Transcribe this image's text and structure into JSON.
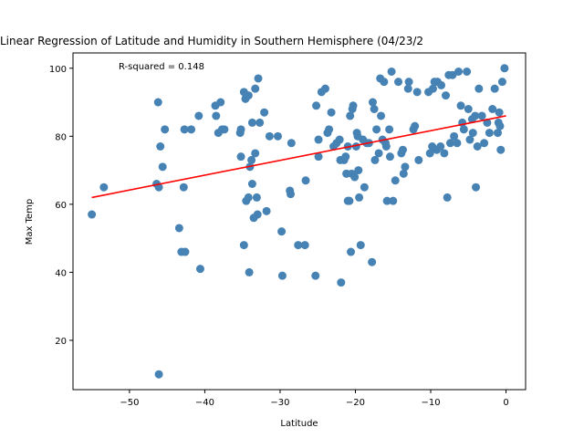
{
  "chart_data": {
    "type": "scatter",
    "title": "Linear Regression of Latitude and Humidity in Southern Hemisphere (04/23/2",
    "xlabel": "Latitude",
    "ylabel": "Max Temp",
    "xlim": [
      -57.5,
      2.6
    ],
    "ylim": [
      5.5,
      104.5
    ],
    "xticks": [
      -50,
      -40,
      -30,
      -20,
      -10,
      0
    ],
    "xtick_labels": [
      "−50",
      "−40",
      "−30",
      "−20",
      "−10",
      "0"
    ],
    "yticks": [
      20,
      40,
      60,
      80,
      100
    ],
    "ytick_labels": [
      "20",
      "40",
      "60",
      "80",
      "100"
    ],
    "grid": false,
    "annotation": "R-squared = 0.148",
    "colors": {
      "points": "#4682b4",
      "line": "#ff0000"
    },
    "regression": {
      "x": [
        -55,
        0
      ],
      "y": [
        62,
        86
      ]
    },
    "points": [
      [
        -55.0,
        57
      ],
      [
        -53.4,
        65
      ],
      [
        -46.4,
        66
      ],
      [
        -46.1,
        65
      ],
      [
        -46.2,
        90
      ],
      [
        -45.9,
        77
      ],
      [
        -45.6,
        71
      ],
      [
        -45.3,
        82
      ],
      [
        -46.1,
        10
      ],
      [
        -43.4,
        53
      ],
      [
        -43.1,
        46
      ],
      [
        -42.6,
        46
      ],
      [
        -42.8,
        65
      ],
      [
        -42.7,
        82
      ],
      [
        -41.8,
        82
      ],
      [
        -40.8,
        86
      ],
      [
        -40.6,
        41
      ],
      [
        -38.6,
        89
      ],
      [
        -38.5,
        86
      ],
      [
        -38.2,
        81
      ],
      [
        -37.9,
        90
      ],
      [
        -37.7,
        82
      ],
      [
        -37.4,
        82
      ],
      [
        -35.2,
        74
      ],
      [
        -35.3,
        81
      ],
      [
        -35.2,
        82
      ],
      [
        -34.8,
        93
      ],
      [
        -34.6,
        91
      ],
      [
        -34.2,
        92
      ],
      [
        -34.5,
        61
      ],
      [
        -34.8,
        48
      ],
      [
        -34.2,
        62
      ],
      [
        -34.0,
        71
      ],
      [
        -33.8,
        73
      ],
      [
        -33.7,
        66
      ],
      [
        -33.5,
        56
      ],
      [
        -33.3,
        75
      ],
      [
        -33.1,
        62
      ],
      [
        -33.0,
        57
      ],
      [
        -32.9,
        97
      ],
      [
        -33.3,
        94
      ],
      [
        -33.7,
        84
      ],
      [
        -34.1,
        40
      ],
      [
        -32.7,
        84
      ],
      [
        -32.1,
        87
      ],
      [
        -31.8,
        58
      ],
      [
        -31.4,
        80
      ],
      [
        -30.3,
        80
      ],
      [
        -29.7,
        39
      ],
      [
        -29.8,
        52
      ],
      [
        -28.7,
        64
      ],
      [
        -28.6,
        63
      ],
      [
        -28.5,
        78
      ],
      [
        -27.6,
        48
      ],
      [
        -26.7,
        48
      ],
      [
        -26.6,
        67
      ],
      [
        -25.3,
        39
      ],
      [
        -25.2,
        89
      ],
      [
        -24.9,
        74
      ],
      [
        -24.9,
        79
      ],
      [
        -24.5,
        93
      ],
      [
        -24.0,
        94
      ],
      [
        -23.7,
        81
      ],
      [
        -23.5,
        82
      ],
      [
        -23.2,
        87
      ],
      [
        -22.9,
        77
      ],
      [
        -22.5,
        78
      ],
      [
        -22.1,
        79
      ],
      [
        -22.0,
        73
      ],
      [
        -21.9,
        37
      ],
      [
        -21.5,
        73
      ],
      [
        -21.3,
        74
      ],
      [
        -21.2,
        69
      ],
      [
        -21.0,
        61
      ],
      [
        -21.0,
        77
      ],
      [
        -20.8,
        61
      ],
      [
        -20.7,
        86
      ],
      [
        -20.6,
        46
      ],
      [
        -20.5,
        69
      ],
      [
        -20.4,
        88
      ],
      [
        -20.3,
        89
      ],
      [
        -20.1,
        68
      ],
      [
        -19.9,
        77
      ],
      [
        -19.8,
        81
      ],
      [
        -19.7,
        80
      ],
      [
        -19.6,
        70
      ],
      [
        -19.5,
        62
      ],
      [
        -19.3,
        48
      ],
      [
        -19.0,
        79
      ],
      [
        -18.8,
        65
      ],
      [
        -18.5,
        78
      ],
      [
        -18.2,
        78
      ],
      [
        -17.8,
        43
      ],
      [
        -17.7,
        90
      ],
      [
        -17.5,
        88
      ],
      [
        -17.4,
        73
      ],
      [
        -17.2,
        82
      ],
      [
        -16.9,
        75
      ],
      [
        -16.7,
        97
      ],
      [
        -16.6,
        86
      ],
      [
        -16.4,
        79
      ],
      [
        -16.2,
        96
      ],
      [
        -16.0,
        78
      ],
      [
        -15.9,
        77
      ],
      [
        -15.8,
        61
      ],
      [
        -15.5,
        82
      ],
      [
        -15.4,
        74
      ],
      [
        -15.2,
        99
      ],
      [
        -15.0,
        61
      ],
      [
        -14.7,
        67
      ],
      [
        -14.3,
        96
      ],
      [
        -13.9,
        75
      ],
      [
        -13.7,
        76
      ],
      [
        -13.6,
        69
      ],
      [
        -13.4,
        71
      ],
      [
        -13.0,
        94
      ],
      [
        -12.9,
        96
      ],
      [
        -12.3,
        82
      ],
      [
        -12.1,
        83
      ],
      [
        -11.8,
        93
      ],
      [
        -11.6,
        73
      ],
      [
        -10.3,
        93
      ],
      [
        -10.1,
        75
      ],
      [
        -9.8,
        77
      ],
      [
        -9.7,
        94
      ],
      [
        -9.5,
        96
      ],
      [
        -9.2,
        76
      ],
      [
        -9.1,
        96
      ],
      [
        -8.7,
        77
      ],
      [
        -8.6,
        95
      ],
      [
        -8.2,
        75
      ],
      [
        -8.0,
        92
      ],
      [
        -7.8,
        62
      ],
      [
        -7.6,
        98
      ],
      [
        -7.4,
        78
      ],
      [
        -7.1,
        98
      ],
      [
        -6.9,
        80
      ],
      [
        -6.5,
        78
      ],
      [
        -6.3,
        99
      ],
      [
        -6.0,
        89
      ],
      [
        -5.8,
        84
      ],
      [
        -5.6,
        82
      ],
      [
        -5.2,
        99
      ],
      [
        -5.0,
        88
      ],
      [
        -4.8,
        79
      ],
      [
        -4.5,
        85
      ],
      [
        -4.4,
        81
      ],
      [
        -4.1,
        86
      ],
      [
        -4.0,
        65
      ],
      [
        -3.8,
        77
      ],
      [
        -3.6,
        94
      ],
      [
        -3.2,
        86
      ],
      [
        -2.9,
        78
      ],
      [
        -2.5,
        84
      ],
      [
        -2.2,
        81
      ],
      [
        -1.8,
        88
      ],
      [
        -1.5,
        94
      ],
      [
        -1.1,
        81
      ],
      [
        -1.0,
        84
      ],
      [
        -0.9,
        87
      ],
      [
        -0.8,
        83
      ],
      [
        -0.7,
        76
      ],
      [
        -0.5,
        96
      ],
      [
        -0.2,
        100
      ]
    ]
  }
}
